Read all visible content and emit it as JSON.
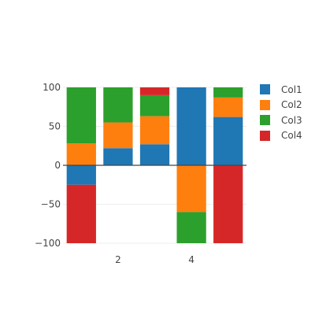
{
  "chart_data": {
    "type": "bar",
    "barmode": "relative",
    "title": "",
    "xlabel": "",
    "ylabel": "",
    "x": [
      1,
      2,
      3,
      4,
      5
    ],
    "ylim": [
      -100,
      100
    ],
    "y_ticks": [
      100,
      50,
      0,
      -50,
      -100
    ],
    "y_tick_labels": [
      "100",
      "50",
      "0",
      "−50",
      "−100"
    ],
    "x_ticks": [
      2,
      4
    ],
    "x_tick_labels": [
      "2",
      "4"
    ],
    "grid": true,
    "legend_position": "right",
    "series": [
      {
        "name": "Col1",
        "color": "#1f77b4",
        "values": [
          -25,
          22,
          27,
          100,
          62
        ]
      },
      {
        "name": "Col2",
        "color": "#ff7f0e",
        "values": [
          28,
          33,
          36,
          -60,
          25
        ]
      },
      {
        "name": "Col3",
        "color": "#2ca02c",
        "values": [
          72,
          45,
          27,
          -40,
          13
        ]
      },
      {
        "name": "Col4",
        "color": "#d62728",
        "values": [
          -75,
          0,
          10,
          0,
          -100
        ]
      }
    ]
  }
}
